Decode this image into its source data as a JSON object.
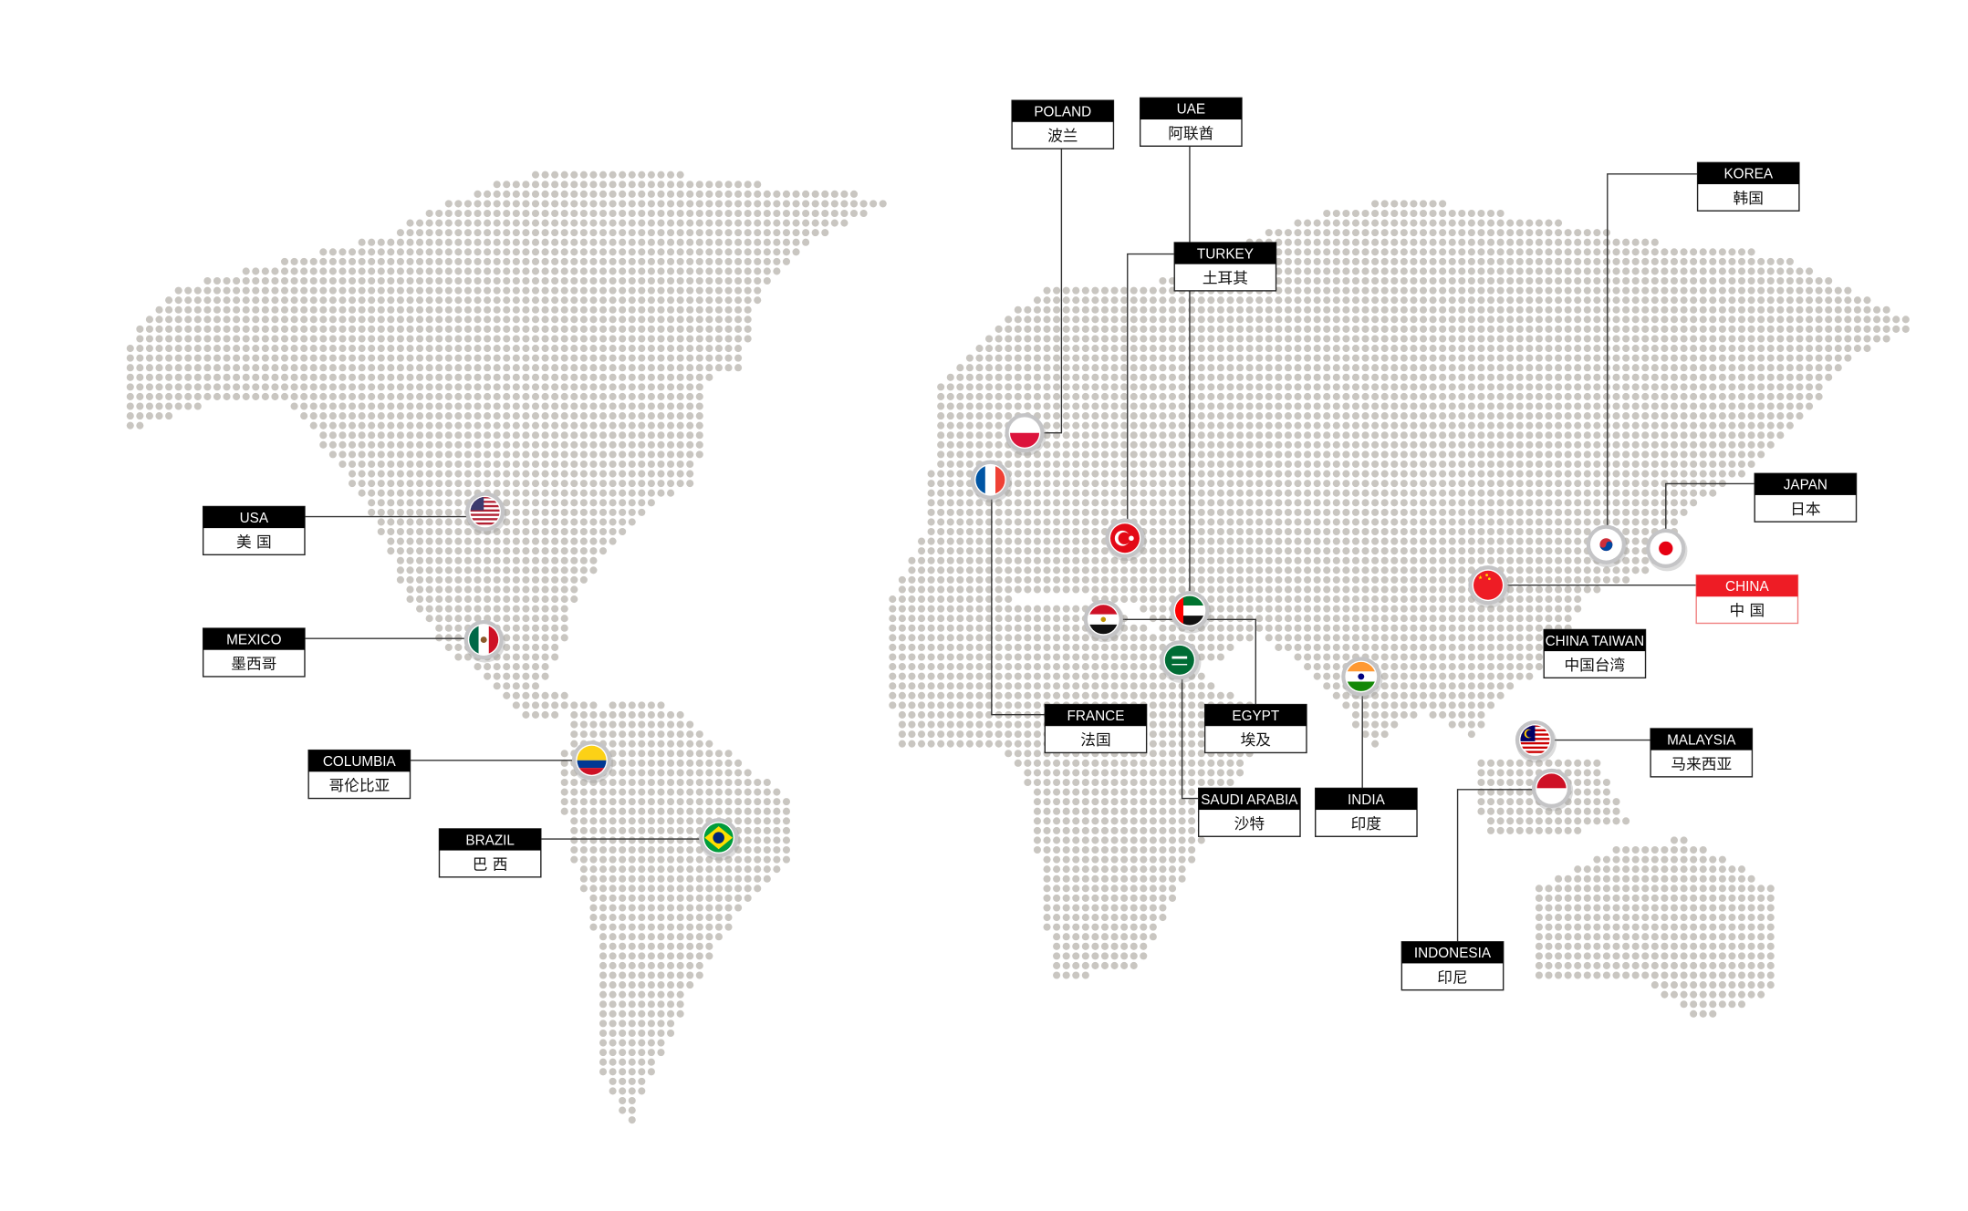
{
  "map": {
    "dot_color": "#c9c6c1",
    "connector_color": "#333333",
    "header_color": "#000000",
    "highlight_color": "#ee1c25"
  },
  "countries": [
    {
      "id": "usa",
      "en": "USA",
      "zh": "美 国",
      "flag": "usa-flag-icon"
    },
    {
      "id": "mexico",
      "en": "MEXICO",
      "zh": "墨西哥",
      "flag": "mexico-flag-icon"
    },
    {
      "id": "columbia",
      "en": "COLUMBIA",
      "zh": "哥伦比亚",
      "flag": "colombia-flag-icon"
    },
    {
      "id": "brazil",
      "en": "BRAZIL",
      "zh": "巴 西",
      "flag": "brazil-flag-icon"
    },
    {
      "id": "poland",
      "en": "POLAND",
      "zh": "波兰",
      "flag": "poland-flag-icon"
    },
    {
      "id": "uae",
      "en": "UAE",
      "zh": "阿联酋",
      "flag": "uae-flag-icon"
    },
    {
      "id": "turkey",
      "en": "TURKEY",
      "zh": "土耳其",
      "flag": "turkey-flag-icon"
    },
    {
      "id": "korea",
      "en": "KOREA",
      "zh": "韩国",
      "flag": "korea-flag-icon"
    },
    {
      "id": "japan",
      "en": "JAPAN",
      "zh": "日本",
      "flag": "japan-flag-icon"
    },
    {
      "id": "china",
      "en": "CHINA",
      "zh": "中 国",
      "flag": "china-flag-icon",
      "highlight": true
    },
    {
      "id": "china-taiwan",
      "en": "CHINA TAIWAN",
      "zh": "中国台湾"
    },
    {
      "id": "malaysia",
      "en": "MALAYSIA",
      "zh": "马来西亚",
      "flag": "malaysia-flag-icon"
    },
    {
      "id": "france",
      "en": "FRANCE",
      "zh": "法国",
      "flag": "france-flag-icon"
    },
    {
      "id": "egypt",
      "en": "EGYPT",
      "zh": "埃及",
      "flag": "egypt-flag-icon"
    },
    {
      "id": "saudi-arabia",
      "en": "SAUDI ARABIA",
      "zh": "沙特",
      "flag": "saudi-arabia-flag-icon"
    },
    {
      "id": "india",
      "en": "INDIA",
      "zh": "印度",
      "flag": "india-flag-icon"
    },
    {
      "id": "indonesia",
      "en": "INDONESIA",
      "zh": "印尼",
      "flag": "indonesia-flag-icon"
    }
  ]
}
